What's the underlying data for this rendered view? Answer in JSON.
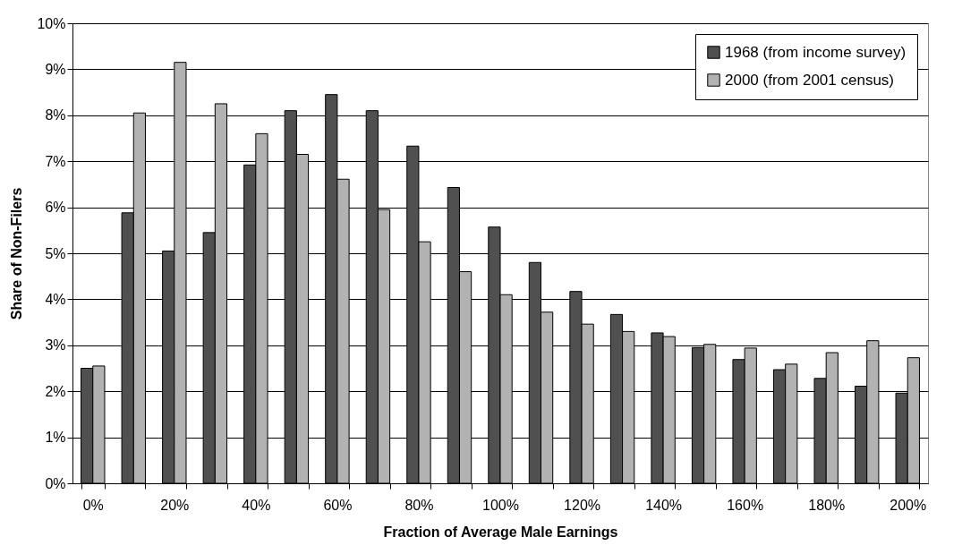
{
  "chart_data": {
    "type": "bar",
    "xlabel": "Fraction of Average Male Earnings",
    "ylabel": "Share of Non-Filers",
    "categories": [
      "0%",
      null,
      "20%",
      null,
      "40%",
      null,
      "60%",
      null,
      "80%",
      null,
      "100%",
      null,
      "120%",
      null,
      "140%",
      null,
      "160%",
      null,
      "180%",
      null,
      "200%"
    ],
    "series": [
      {
        "name": "1968 (from income survey)",
        "color": "#505050",
        "values": [
          2.5,
          5.88,
          5.05,
          5.45,
          6.92,
          8.1,
          8.45,
          8.1,
          7.33,
          6.43,
          5.57,
          4.8,
          4.17,
          3.67,
          3.27,
          2.95,
          2.69,
          2.47,
          2.28,
          2.11,
          1.96
        ]
      },
      {
        "name": "2000 (from 2001 census)",
        "color": "#b2b2b2",
        "values": [
          2.55,
          8.05,
          9.15,
          8.25,
          7.6,
          7.15,
          6.61,
          5.95,
          5.25,
          4.6,
          4.1,
          3.72,
          3.46,
          3.3,
          3.19,
          3.02,
          2.94,
          2.59,
          2.84,
          3.1,
          2.73
        ]
      }
    ],
    "ylim": [
      0,
      10
    ],
    "yticks": [
      {
        "value": 0,
        "label": "0%"
      },
      {
        "value": 1,
        "label": "1%"
      },
      {
        "value": 2,
        "label": "2%"
      },
      {
        "value": 3,
        "label": "3%"
      },
      {
        "value": 4,
        "label": "4%"
      },
      {
        "value": 5,
        "label": "5%"
      },
      {
        "value": 6,
        "label": "6%"
      },
      {
        "value": 7,
        "label": "7%"
      },
      {
        "value": 8,
        "label": "8%"
      },
      {
        "value": 9,
        "label": "9%"
      },
      {
        "value": 10,
        "label": "10%"
      }
    ],
    "grid": "y",
    "legend": "top right"
  }
}
